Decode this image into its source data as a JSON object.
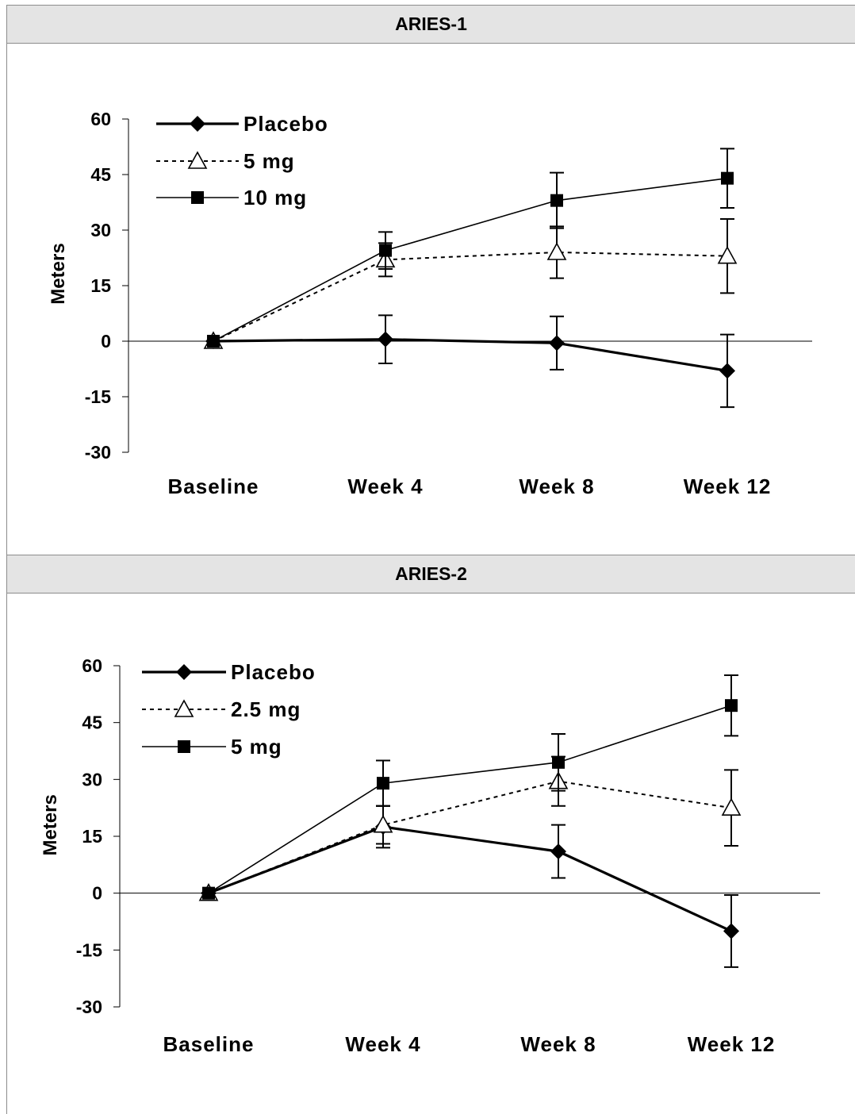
{
  "chart_data": [
    {
      "type": "line",
      "title": "ARIES-1",
      "ylabel": "Meters",
      "ylim": [
        -30,
        60
      ],
      "yticks": [
        60,
        45,
        30,
        15,
        0,
        -15,
        -30
      ],
      "categories": [
        "Baseline",
        "Week 4",
        "Week 8",
        "Week 12"
      ],
      "legend_position": "top-left",
      "series": [
        {
          "name": "Placebo",
          "marker": "diamond",
          "style": "solid-thick",
          "values": [
            0,
            0.5,
            -0.5,
            -8
          ],
          "error": [
            null,
            6.5,
            7.2,
            9.8
          ]
        },
        {
          "name": "5 mg",
          "marker": "triangle-open",
          "style": "dotted",
          "values": [
            0,
            22,
            24,
            23
          ],
          "error": [
            null,
            4.5,
            7,
            10
          ]
        },
        {
          "name": "10 mg",
          "marker": "square",
          "style": "solid-thin",
          "values": [
            0,
            24.5,
            38,
            44
          ],
          "error": [
            null,
            5,
            7.5,
            8
          ]
        }
      ]
    },
    {
      "type": "line",
      "title": "ARIES-2",
      "ylabel": "Meters",
      "ylim": [
        -30,
        60
      ],
      "yticks": [
        60,
        45,
        30,
        15,
        0,
        -15,
        -30
      ],
      "categories": [
        "Baseline",
        "Week 4",
        "Week 8",
        "Week 12"
      ],
      "legend_position": "top-left",
      "series": [
        {
          "name": "Placebo",
          "marker": "diamond",
          "style": "solid-thick",
          "values": [
            0,
            17.5,
            11,
            -10
          ],
          "error": [
            null,
            5.5,
            7,
            9.5
          ]
        },
        {
          "name": "2.5 mg",
          "marker": "triangle-open",
          "style": "dotted",
          "values": [
            0,
            18,
            29.5,
            22.5
          ],
          "error": [
            null,
            5,
            6.5,
            10
          ]
        },
        {
          "name": "5 mg",
          "marker": "square",
          "style": "solid-thin",
          "values": [
            0,
            29,
            34.5,
            49.5
          ],
          "error": [
            null,
            6,
            7.5,
            8
          ]
        }
      ]
    }
  ]
}
